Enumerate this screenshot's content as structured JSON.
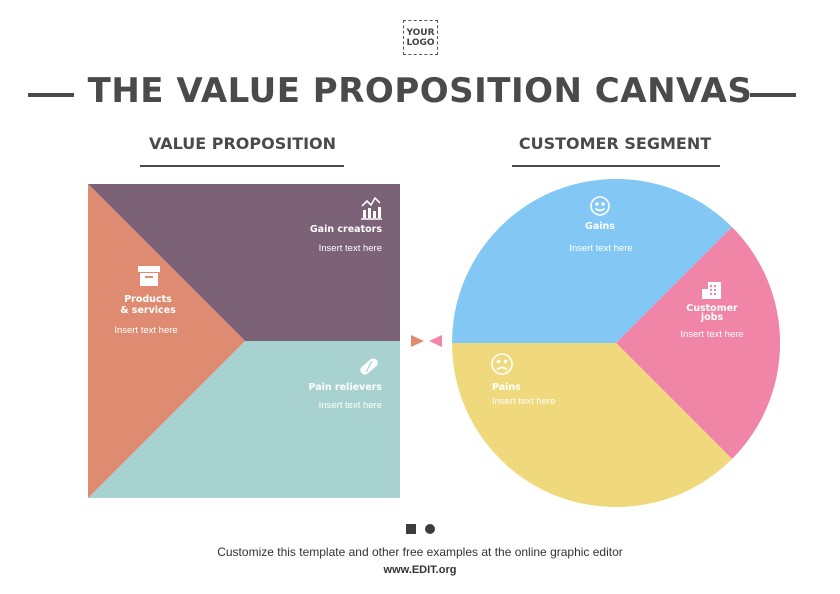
{
  "logo": {
    "line1": "YOUR",
    "line2": "LOGO"
  },
  "title": "THE VALUE PROPOSITION CANVAS",
  "sections": {
    "value_proposition": "VALUE PROPOSITION",
    "customer_segment": "CUSTOMER SEGMENT"
  },
  "value_map": {
    "products": {
      "title_line1": "Products",
      "title_line2": "& services",
      "body": "Insert text here",
      "color": "#df8b72",
      "icon": "box-icon"
    },
    "gain_creators": {
      "title": "Gain creators",
      "body": "Insert text here",
      "color": "#7b6277",
      "icon": "chart-icon"
    },
    "pain_relievers": {
      "title": "Pain relievers",
      "body": "Insert text here",
      "color": "#a8d2cf",
      "icon": "pill-icon"
    }
  },
  "customer_profile": {
    "gains": {
      "title": "Gains",
      "body": "Insert text here",
      "color": "#83c8f4",
      "icon": "smile-icon"
    },
    "customer_jobs": {
      "title_line1": "Customer",
      "title_line2": "jobs",
      "body": "Insert text here",
      "color": "#f185a7",
      "icon": "building-icon"
    },
    "pains": {
      "title": "Pains",
      "body": "Insert text here",
      "color": "#f0d97c",
      "icon": "frown-icon"
    }
  },
  "connector": {
    "left_color": "#df8b72",
    "right_color": "#f185a7"
  },
  "footer": {
    "text": "Customize this template and other free examples at the online graphic editor",
    "url": "www.EDIT.org"
  }
}
